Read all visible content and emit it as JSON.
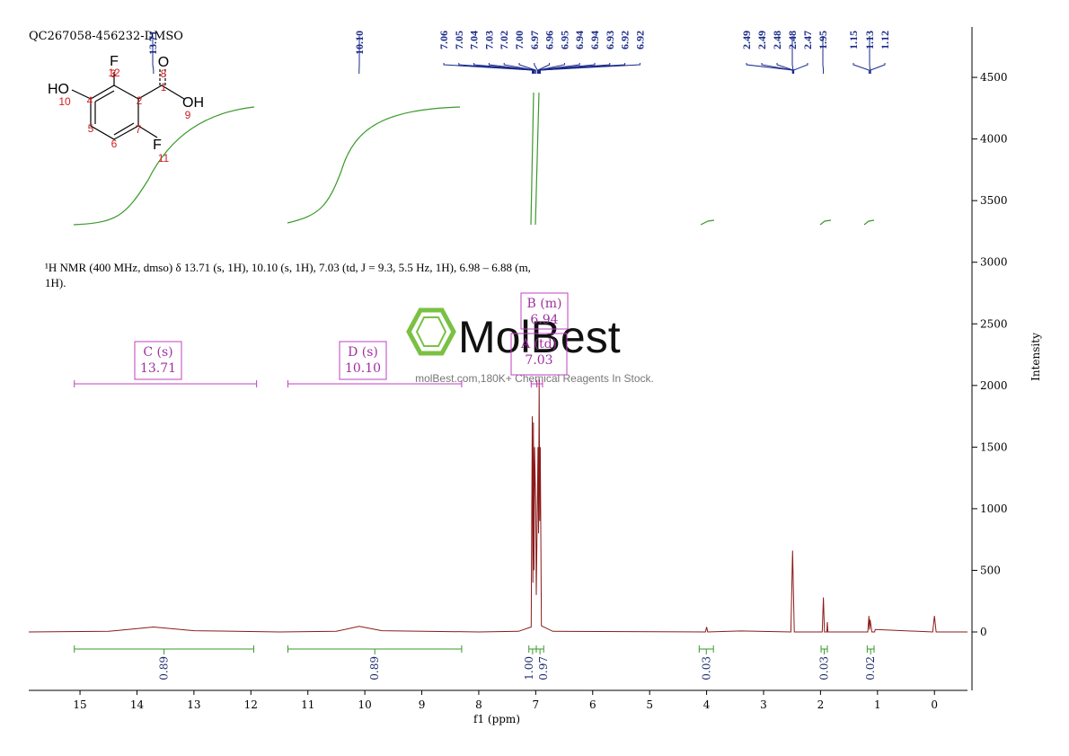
{
  "chart_data": {
    "type": "line",
    "title": "QC267058-456232-DMSO",
    "description": "¹H NMR (400 MHz, dmso) δ 13.71 (s, 1H), 10.10 (s, 1H), 7.03 (td, J = 9.3, 5.5 Hz, 1H), 6.98 – 6.88 (m, 1H).",
    "xlabel": "f1 (ppm)",
    "ylabel": "Intensity",
    "color": "#8b1a1a",
    "x": [
      15.9,
      14.5,
      13.71,
      13.0,
      11.5,
      10.5,
      10.1,
      9.7,
      8.0,
      7.3,
      7.08,
      7.06,
      7.05,
      7.04,
      7.03,
      7.02,
      7.0,
      6.99,
      6.97,
      6.96,
      6.95,
      6.94,
      6.93,
      6.92,
      6.9,
      6.7,
      4.02,
      4.0,
      3.98,
      3.4,
      2.52,
      2.49,
      2.46,
      1.97,
      1.95,
      1.93,
      1.89,
      1.88,
      1.87,
      1.17,
      1.15,
      1.14,
      1.13,
      1.1,
      1.05,
      1.04,
      0.03,
      0.0,
      -0.03,
      -0.58
    ],
    "values": [
      0,
      5,
      40,
      10,
      0,
      5,
      45,
      10,
      0,
      5,
      40,
      1750,
      400,
      1700,
      500,
      1500,
      1000,
      300,
      1100,
      1500,
      800,
      2050,
      900,
      1500,
      50,
      5,
      0,
      40,
      0,
      8,
      0,
      660,
      0,
      0,
      280,
      0,
      0,
      80,
      0,
      0,
      130,
      20,
      100,
      0,
      0,
      20,
      0,
      130,
      0,
      0
    ],
    "xlim": [
      15.9,
      -0.58
    ],
    "xticks": [
      15,
      14,
      13,
      12,
      11,
      10,
      9,
      8,
      7,
      6,
      5,
      4,
      3,
      2,
      1,
      0
    ],
    "ylim": [
      -474,
      4909
    ],
    "yticks": [
      0,
      500,
      1000,
      1500,
      2000,
      2500,
      3000,
      3500,
      4000,
      4500
    ],
    "peak_picks": [
      13.71,
      {
        "value": 10.1,
        "label": "10.10"
      },
      7.06,
      7.05,
      7.04,
      7.03,
      7.02,
      {
        "value": 7.0,
        "label": "7.00"
      },
      6.97,
      6.96,
      6.95,
      6.94,
      6.94,
      6.93,
      6.92,
      6.92,
      2.49,
      2.49,
      2.48,
      2.48,
      2.47,
      1.95,
      1.15,
      1.13,
      1.12
    ],
    "integrals": {
      "from": [
        15.1,
        11.35,
        7.12,
        6.99,
        4.13,
        1.99,
        1.18
      ],
      "to": [
        11.95,
        8.3,
        6.99,
        6.86,
        3.88,
        1.88,
        1.06
      ],
      "values": [
        0.89,
        0.89,
        1.0,
        0.97,
        0.03,
        0.03,
        0.02
      ],
      "value_labels": [
        "0.89",
        "0.89",
        "1.00",
        "0.97",
        "0.03",
        "0.03",
        "0.02"
      ]
    },
    "multiplets": [
      {
        "name": "C (s)",
        "shift": 13.71,
        "from": 15.1,
        "to": 11.9
      },
      {
        "name": "D (s)",
        "shift": {
          "value": 10.1,
          "label": "10.10"
        },
        "from": 11.35,
        "to": 8.3
      },
      {
        "name": "B (m)",
        "shift": 6.94,
        "from": 6.98,
        "to": 6.88
      },
      {
        "name": "A (td)",
        "shift": 7.03,
        "from": 7.08,
        "to": 6.98
      }
    ]
  },
  "structure_labels": [
    "HO",
    "10",
    "4",
    "3",
    "F",
    "12",
    "2",
    "1",
    "O",
    "8",
    "OH",
    "9",
    "5",
    "6",
    "7",
    "F",
    "11"
  ],
  "watermark": {
    "brand": "MolBest",
    "tagline": "molBest.com,180K+ Chemical Reagents In Stock."
  }
}
